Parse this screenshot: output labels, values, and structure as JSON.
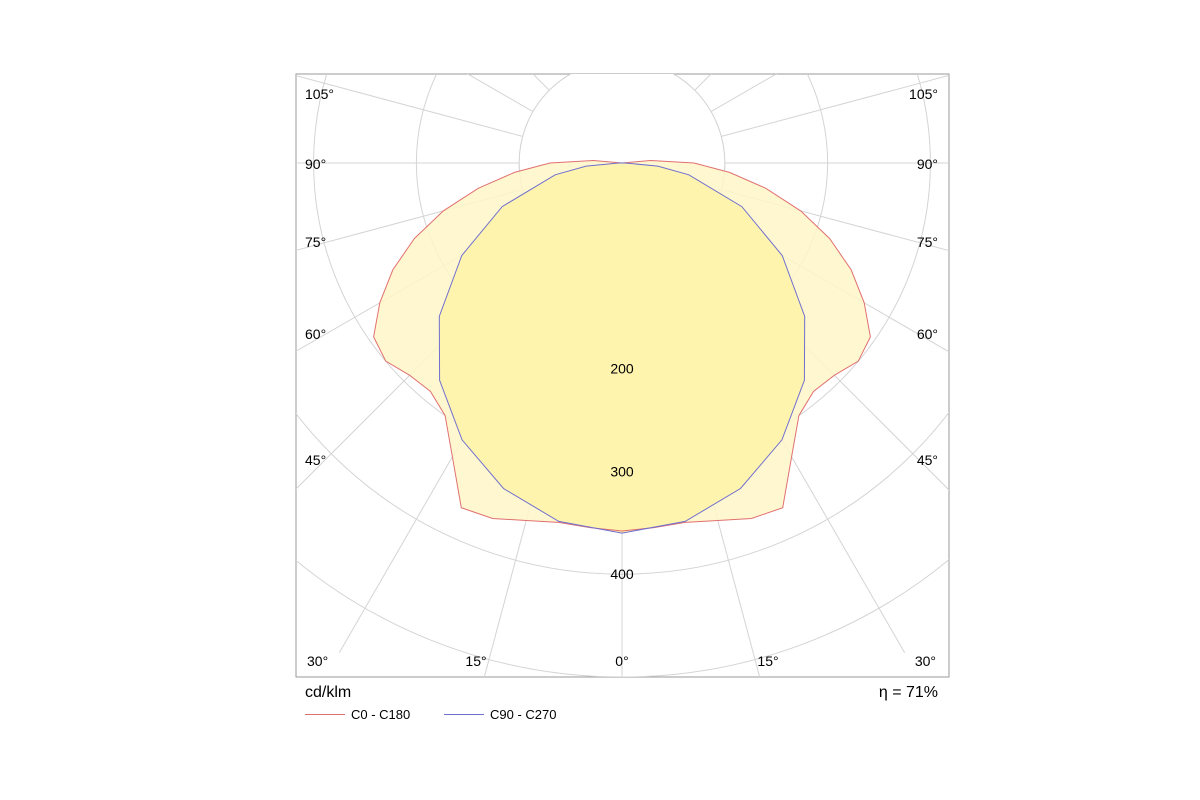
{
  "chart_data": {
    "type": "polar",
    "unit": "cd/klm",
    "efficiency": "η = 71%",
    "radial_max": 550,
    "radial_ticks": [
      {
        "value": 100,
        "label": ""
      },
      {
        "value": 200,
        "label": "200"
      },
      {
        "value": 300,
        "label": "300"
      },
      {
        "value": 400,
        "label": "400"
      },
      {
        "value": 500,
        "label": ""
      }
    ],
    "angle_labels": [
      {
        "deg": 105,
        "left": "105°",
        "right": "105°"
      },
      {
        "deg": 90,
        "left": "90°",
        "right": "90°"
      },
      {
        "deg": 75,
        "left": "75°",
        "right": "75°"
      },
      {
        "deg": 60,
        "left": "60°",
        "right": "60°"
      },
      {
        "deg": 45,
        "left": "45°",
        "right": "45°"
      }
    ],
    "bottom_labels": [
      "30°",
      "15°",
      "0°",
      "15°",
      "30°"
    ],
    "series": [
      {
        "name": "C0 - C180",
        "color": "#e07070",
        "points": [
          [
            0,
            358
          ],
          [
            5,
            356
          ],
          [
            10,
            355
          ],
          [
            15,
            360
          ],
          [
            20,
            368
          ],
          [
            25,
            370
          ],
          [
            30,
            330
          ],
          [
            35,
            300
          ],
          [
            40,
            290
          ],
          [
            45,
            292
          ],
          [
            50,
            300
          ],
          [
            55,
            295
          ],
          [
            60,
            272
          ],
          [
            65,
            246
          ],
          [
            70,
            215
          ],
          [
            75,
            180
          ],
          [
            80,
            142
          ],
          [
            85,
            105
          ],
          [
            90,
            70
          ],
          [
            95,
            28
          ],
          [
            100,
            0
          ]
        ]
      },
      {
        "name": "C90 - C270",
        "color": "#6f6fcf",
        "points": [
          [
            0,
            360
          ],
          [
            10,
            354
          ],
          [
            20,
            337
          ],
          [
            30,
            311
          ],
          [
            40,
            276
          ],
          [
            50,
            232
          ],
          [
            60,
            180
          ],
          [
            70,
            124
          ],
          [
            80,
            66
          ],
          [
            85,
            35
          ],
          [
            90,
            3
          ]
        ]
      }
    ]
  }
}
